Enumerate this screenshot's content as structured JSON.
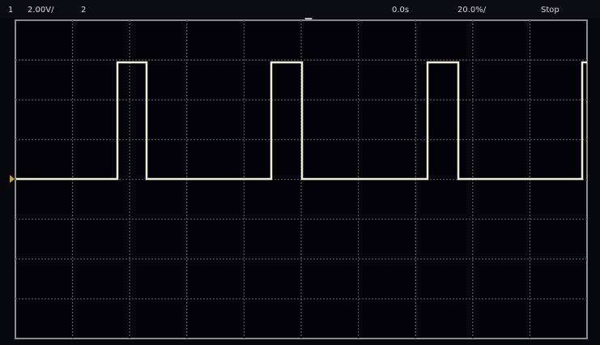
{
  "status_bar": {
    "channel": "1",
    "scale": "2.00V/",
    "channel_2": "2",
    "time_offset": "0.0s",
    "timebase": "20.0%/",
    "run_state": "Stop"
  }
}
